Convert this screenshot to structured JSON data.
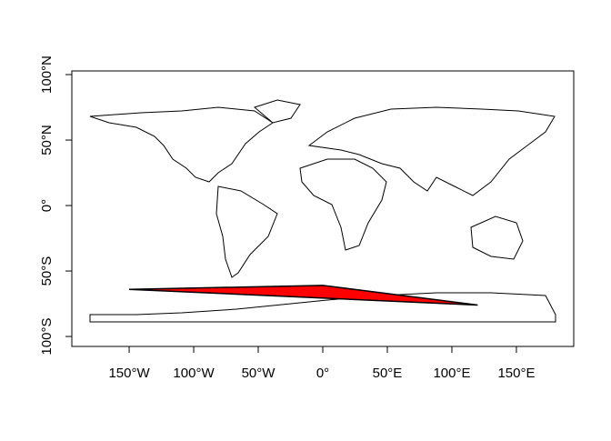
{
  "chart_data": {
    "type": "map",
    "xlim": [
      -194.4,
      194.4
    ],
    "ylim": [
      -107.6,
      102.8
    ],
    "xticks": [
      {
        "value": -150,
        "label": "150°W"
      },
      {
        "value": -100,
        "label": "100°W"
      },
      {
        "value": -50,
        "label": "50°W"
      },
      {
        "value": 0,
        "label": "0°"
      },
      {
        "value": 50,
        "label": "50°E"
      },
      {
        "value": 100,
        "label": "100°E"
      },
      {
        "value": 150,
        "label": "150°E"
      }
    ],
    "yticks": [
      {
        "value": -100,
        "label": "100°S"
      },
      {
        "value": -50,
        "label": "50°S"
      },
      {
        "value": 0,
        "label": "0°"
      },
      {
        "value": 50,
        "label": "50°N"
      },
      {
        "value": 100,
        "label": "100°N"
      }
    ],
    "polygon": {
      "color": "#ff0000",
      "lon": [
        -150,
        0,
        120
      ],
      "lat": [
        -64,
        -61,
        -76
      ]
    }
  }
}
